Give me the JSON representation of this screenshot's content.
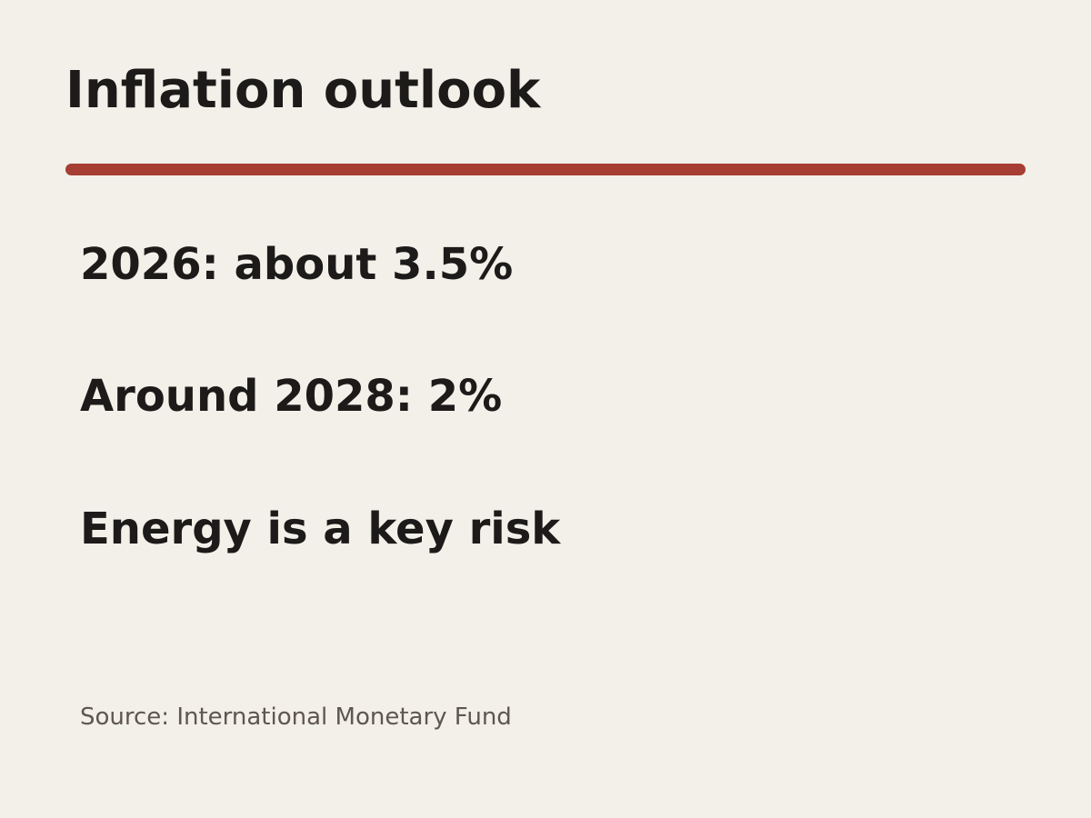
{
  "slide": {
    "title": "Inflation outlook",
    "points": [
      "2026: about 3.5%",
      "Around 2028: 2%",
      "Energy is a key risk"
    ],
    "source": "Source: International Monetary Fund"
  },
  "colors": {
    "background": "#f3efe9",
    "accent": "#a63e33",
    "text": "#1c1b19",
    "muted_text": "#5e574e"
  }
}
